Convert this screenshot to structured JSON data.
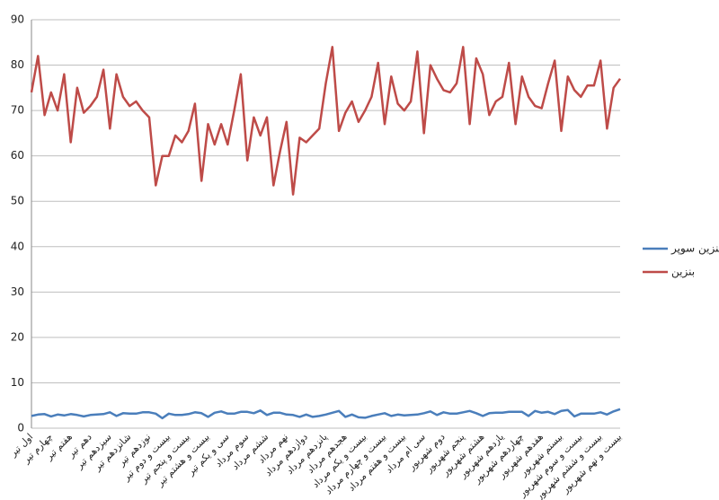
{
  "chart_data": {
    "type": "line",
    "categories": [
      "اول تیر",
      null,
      null,
      "چهارم تیر",
      null,
      null,
      "هفتم تیر",
      null,
      null,
      "دهم تیر",
      null,
      null,
      "سیزدهم تیر",
      null,
      null,
      "شانزدهم تیر",
      null,
      null,
      "نوزدهم تیر",
      null,
      null,
      "بیست و دوم تیر",
      null,
      null,
      "بیست و پنجم تیر",
      null,
      null,
      "بیست و هشتم تیر",
      null,
      null,
      "سی و یکم تیر",
      null,
      null,
      "سوم مرداد",
      null,
      null,
      "ششم مرداد",
      null,
      null,
      "نهم مرداد",
      null,
      null,
      "دوازدهم مرداد",
      null,
      null,
      "پانزدهم مرداد",
      null,
      null,
      "هجدهم مرداد",
      null,
      null,
      "بیست و یکم مرداد",
      null,
      null,
      "بیست و چهارم مرداد",
      null,
      null,
      "بیست و هفتم مرداد",
      null,
      null,
      "سی ام مرداد",
      null,
      null,
      "دوم شهریور",
      null,
      null,
      "پنجم شهریور",
      null,
      null,
      "هشتم شهریور",
      null,
      null,
      "یازدهم شهریور",
      null,
      null,
      "چهاردهم شهریور",
      null,
      null,
      "هفدهم شهریور",
      null,
      null,
      "بیستم شهریور",
      null,
      null,
      "بیست و سوم شهریور",
      null,
      null,
      "بیست و ششم شهریور",
      null,
      null,
      "بیست و نهم شهریور"
    ],
    "series": [
      {
        "name": "بنزین سوپر",
        "color": "#4a7ebb",
        "values": [
          2.7,
          3,
          3.1,
          2.6,
          3,
          2.8,
          3.1,
          2.9,
          2.6,
          2.9,
          3,
          3.1,
          3.5,
          2.7,
          3.3,
          3.2,
          3.2,
          3.5,
          3.5,
          3.2,
          2.2,
          3.2,
          2.9,
          2.9,
          3.1,
          3.5,
          3.3,
          2.5,
          3.4,
          3.7,
          3.2,
          3.2,
          3.6,
          3.6,
          3.3,
          3.9,
          2.9,
          3.4,
          3.4,
          3,
          2.9,
          2.5,
          3,
          2.5,
          2.7,
          3,
          3.4,
          3.8,
          2.5,
          3,
          2.4,
          2.3,
          2.7,
          3,
          3.3,
          2.7,
          3,
          2.8,
          2.9,
          3,
          3.3,
          3.7,
          2.9,
          3.5,
          3.2,
          3.2,
          3.5,
          3.8,
          3.3,
          2.7,
          3.3,
          3.4,
          3.4,
          3.6,
          3.6,
          3.6,
          2.7,
          3.8,
          3.4,
          3.6,
          3.1,
          3.8,
          4.0,
          2.6,
          3.2,
          3.2,
          3.2,
          3.5,
          3,
          3.7,
          4.2
        ]
      },
      {
        "name": "بنزین",
        "color": "#be4b48",
        "values": [
          74,
          82,
          69,
          74,
          70,
          78,
          63,
          75,
          69.5,
          71,
          73,
          79,
          66,
          78,
          73,
          71,
          72,
          70,
          68.5,
          53.5,
          60,
          60,
          64.5,
          63,
          65.5,
          71.5,
          54.5,
          67,
          62.5,
          67,
          62.5,
          70,
          78,
          59,
          68.5,
          64.5,
          68.5,
          53.5,
          61,
          67.5,
          51.5,
          64,
          63,
          64.5,
          66,
          76,
          84,
          65.5,
          69.5,
          72,
          67.5,
          70,
          73,
          80.5,
          67,
          77.5,
          71.5,
          70,
          72,
          83,
          65,
          80,
          77,
          74.5,
          74,
          76,
          84,
          67,
          81.5,
          78,
          69,
          72,
          73,
          80.5,
          67,
          77.5,
          73,
          71,
          70.5,
          76,
          81,
          65.5,
          77.5,
          74.5,
          73,
          75.5,
          75.5,
          81,
          66,
          75,
          77
        ]
      }
    ],
    "ylim": [
      0,
      90
    ],
    "yticks": [
      0,
      10,
      20,
      30,
      40,
      50,
      60,
      70,
      80,
      90
    ],
    "grid": true,
    "legend": "right"
  }
}
